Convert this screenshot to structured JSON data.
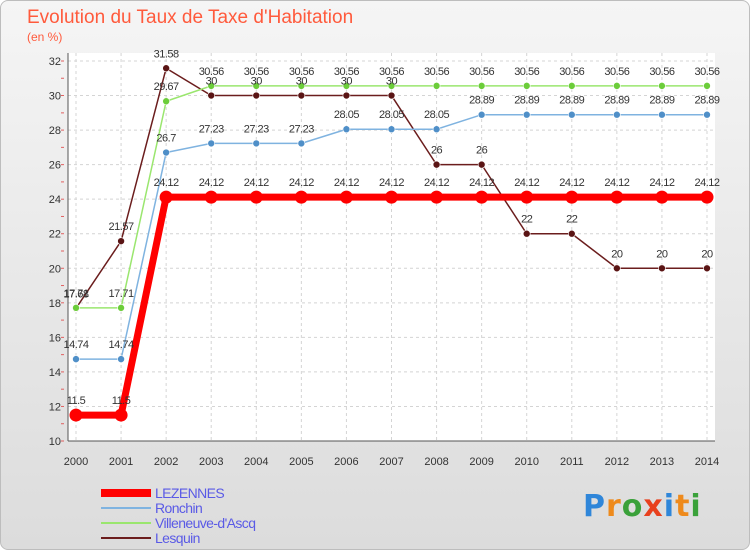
{
  "header": {
    "title": "Evolution du Taux de Taxe d'Habitation",
    "subtitle": "(en %)"
  },
  "logo": {
    "text": "Proxiti",
    "letters": [
      {
        "char": "P",
        "color": "#2f86d9"
      },
      {
        "char": "r",
        "color": "#ee8a1c"
      },
      {
        "char": "o",
        "color": "#3aa13a"
      },
      {
        "char": "x",
        "color": "#e8411e"
      },
      {
        "char": "i",
        "color": "#2f86d9"
      },
      {
        "char": "t",
        "color": "#ee8a1c"
      },
      {
        "char": "i",
        "color": "#3aa13a"
      }
    ]
  },
  "chart_data": {
    "type": "line",
    "x": [
      "2000",
      "2001",
      "2002",
      "2003",
      "2004",
      "2005",
      "2006",
      "2007",
      "2008",
      "2009",
      "2010",
      "2011",
      "2012",
      "2013",
      "2014"
    ],
    "ylim": [
      10,
      32
    ],
    "yticks": [
      10,
      12,
      14,
      16,
      18,
      20,
      22,
      24,
      26,
      28,
      30,
      32
    ],
    "grid": true,
    "legend_position": "bottom-left",
    "series": [
      {
        "name": "Lesquin",
        "color": "#6b1d1d",
        "marker_color": "#5a1414",
        "values": [
          17.68,
          21.57,
          31.58,
          30,
          30,
          30,
          30,
          30,
          26,
          26,
          22,
          22,
          20,
          20,
          20
        ],
        "labels": [
          "17.68",
          "21.57",
          "31.58",
          "30",
          "30",
          "30",
          "30",
          "30",
          "26",
          "26",
          "22",
          "22",
          "20",
          "20",
          "20"
        ]
      },
      {
        "name": "Villeneuve-d'Ascq",
        "color": "#9ae66e",
        "marker_color": "#6ccd3a",
        "values": [
          17.71,
          17.71,
          29.67,
          30.56,
          30.56,
          30.56,
          30.56,
          30.56,
          30.56,
          30.56,
          30.56,
          30.56,
          30.56,
          30.56,
          30.56
        ],
        "labels": [
          "17.71",
          "17.71",
          "29.67",
          "30.56",
          "30.56",
          "30.56",
          "30.56",
          "30.56",
          "30.56",
          "30.56",
          "30.56",
          "30.56",
          "30.56",
          "30.56",
          "30.56"
        ]
      },
      {
        "name": "Ronchin",
        "color": "#7fb3e0",
        "marker_color": "#4f8fc8",
        "values": [
          14.74,
          14.74,
          26.7,
          27.23,
          27.23,
          27.23,
          28.05,
          28.05,
          28.05,
          28.89,
          28.89,
          28.89,
          28.89,
          28.89,
          28.89
        ],
        "labels": [
          "14.74",
          "14.74",
          "26.7",
          "27.23",
          "27.23",
          "27.23",
          "28.05",
          "28.05",
          "28.05",
          "28.89",
          "28.89",
          "28.89",
          "28.89",
          "28.89",
          "28.89"
        ]
      },
      {
        "name": "LEZENNES",
        "color": "#ff0000",
        "marker_color": "#ff0000",
        "thick": true,
        "values": [
          11.5,
          11.5,
          24.12,
          24.12,
          24.12,
          24.12,
          24.12,
          24.12,
          24.12,
          24.12,
          24.12,
          24.12,
          24.12,
          24.12,
          24.12
        ],
        "labels": [
          "11.5",
          "11.5",
          "24.12",
          "24.12",
          "24.12",
          "24.12",
          "24.12",
          "24.12",
          "24.12",
          "24.12",
          "24.12",
          "24.12",
          "24.12",
          "24.12",
          "24.12"
        ]
      }
    ],
    "legend_order": [
      "LEZENNES",
      "Ronchin",
      "Villeneuve-d'Ascq",
      "Lesquin"
    ]
  }
}
